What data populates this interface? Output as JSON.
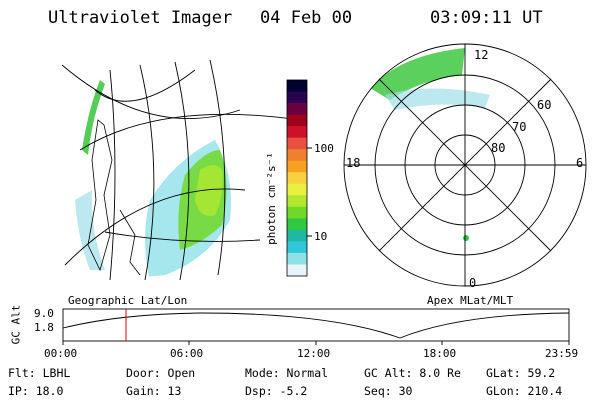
{
  "header": {
    "instrument": "Ultraviolet Imager",
    "date": "04 Feb 00",
    "time": "03:09:11 UT"
  },
  "colorbar": {
    "unit_label": "photon cm⁻²s⁻¹",
    "ticks": [
      "100",
      "10"
    ],
    "colors": [
      "#000033",
      "#2a0050",
      "#6a0040",
      "#a0001a",
      "#d0102a",
      "#e85040",
      "#f08030",
      "#f8a020",
      "#f8d040",
      "#e8f040",
      "#b0e830",
      "#70d828",
      "#30c840",
      "#20b8a0",
      "#30c8d8",
      "#90e0e8",
      "#e8f4f8"
    ]
  },
  "left_panel": {
    "caption": "Geographic Lat/Lon"
  },
  "polar_panel": {
    "caption": "Apex MLat/MLT",
    "mlt_labels": {
      "top": "12",
      "bottom": "0",
      "left": "18",
      "right": "6"
    },
    "lat_labels": [
      "60",
      "70",
      "80"
    ]
  },
  "altitude_plot": {
    "ylabel": "GC Alt",
    "yticks": [
      "9.0",
      "1.8"
    ],
    "xticks": [
      "00:00",
      "06:00",
      "12:00",
      "18:00",
      "23:59"
    ],
    "marker_color": "#e00000"
  },
  "info": {
    "flt": "Flt: LBHL",
    "ip": "IP: 18.0",
    "door": "Door: Open",
    "gain": "Gain: 13",
    "mode": "Mode: Normal",
    "dsp": "Dsp:   -5.2",
    "gcalt": "GC Alt: 8.0 Re",
    "seq": "Seq: 30",
    "glat": "GLat:  59.2",
    "glon": "GLon: 210.4"
  }
}
